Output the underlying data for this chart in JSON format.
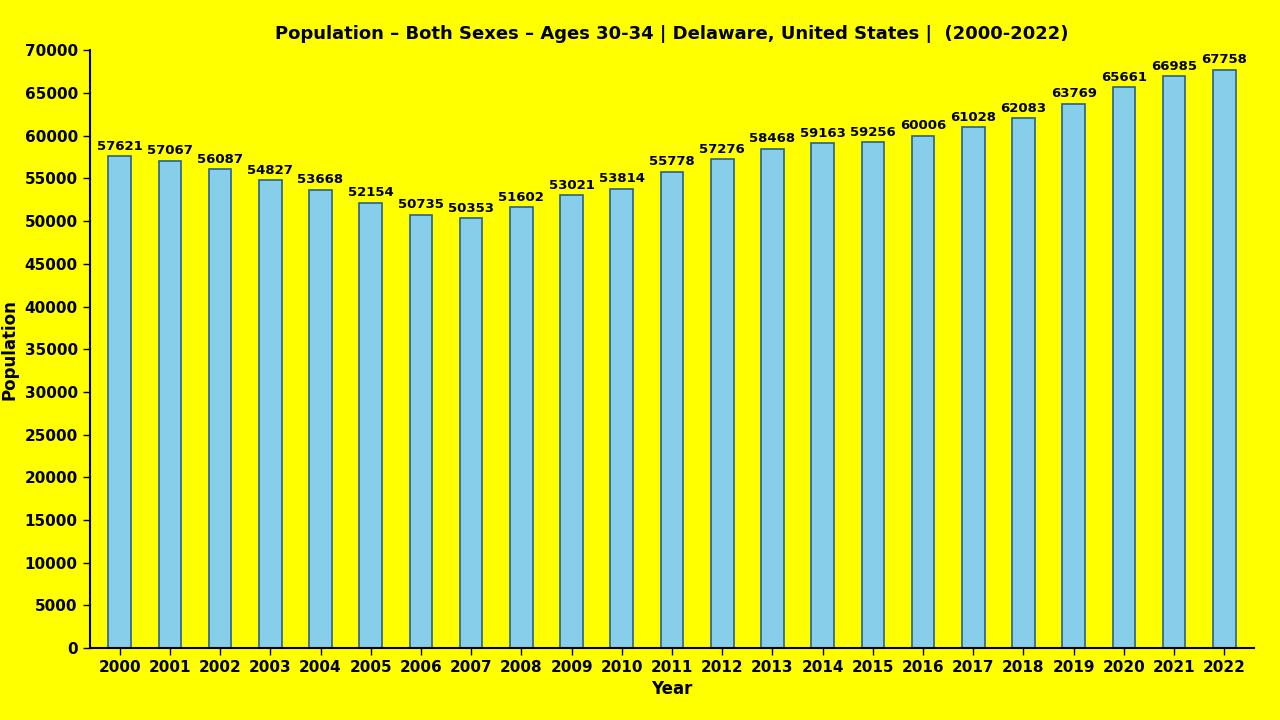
{
  "title": "Population – Both Sexes – Ages 30-34 | Delaware, United States |  (2000-2022)",
  "xlabel": "Year",
  "ylabel": "Population",
  "background_color": "#FFFF00",
  "bar_color": "#87CEEB",
  "bar_edge_color": "#2a6090",
  "years": [
    2000,
    2001,
    2002,
    2003,
    2004,
    2005,
    2006,
    2007,
    2008,
    2009,
    2010,
    2011,
    2012,
    2013,
    2014,
    2015,
    2016,
    2017,
    2018,
    2019,
    2020,
    2021,
    2022
  ],
  "values": [
    57621,
    57067,
    56087,
    54827,
    53668,
    52154,
    50735,
    50353,
    51602,
    53021,
    53814,
    55778,
    57276,
    58468,
    59163,
    59256,
    60006,
    61028,
    62083,
    63769,
    65661,
    66985,
    67758
  ],
  "ylim": [
    0,
    70000
  ],
  "yticks": [
    0,
    5000,
    10000,
    15000,
    20000,
    25000,
    30000,
    35000,
    40000,
    45000,
    50000,
    55000,
    60000,
    65000,
    70000
  ],
  "title_fontsize": 13,
  "label_fontsize": 12,
  "tick_fontsize": 11,
  "annotation_fontsize": 9.5,
  "bar_width": 0.45
}
